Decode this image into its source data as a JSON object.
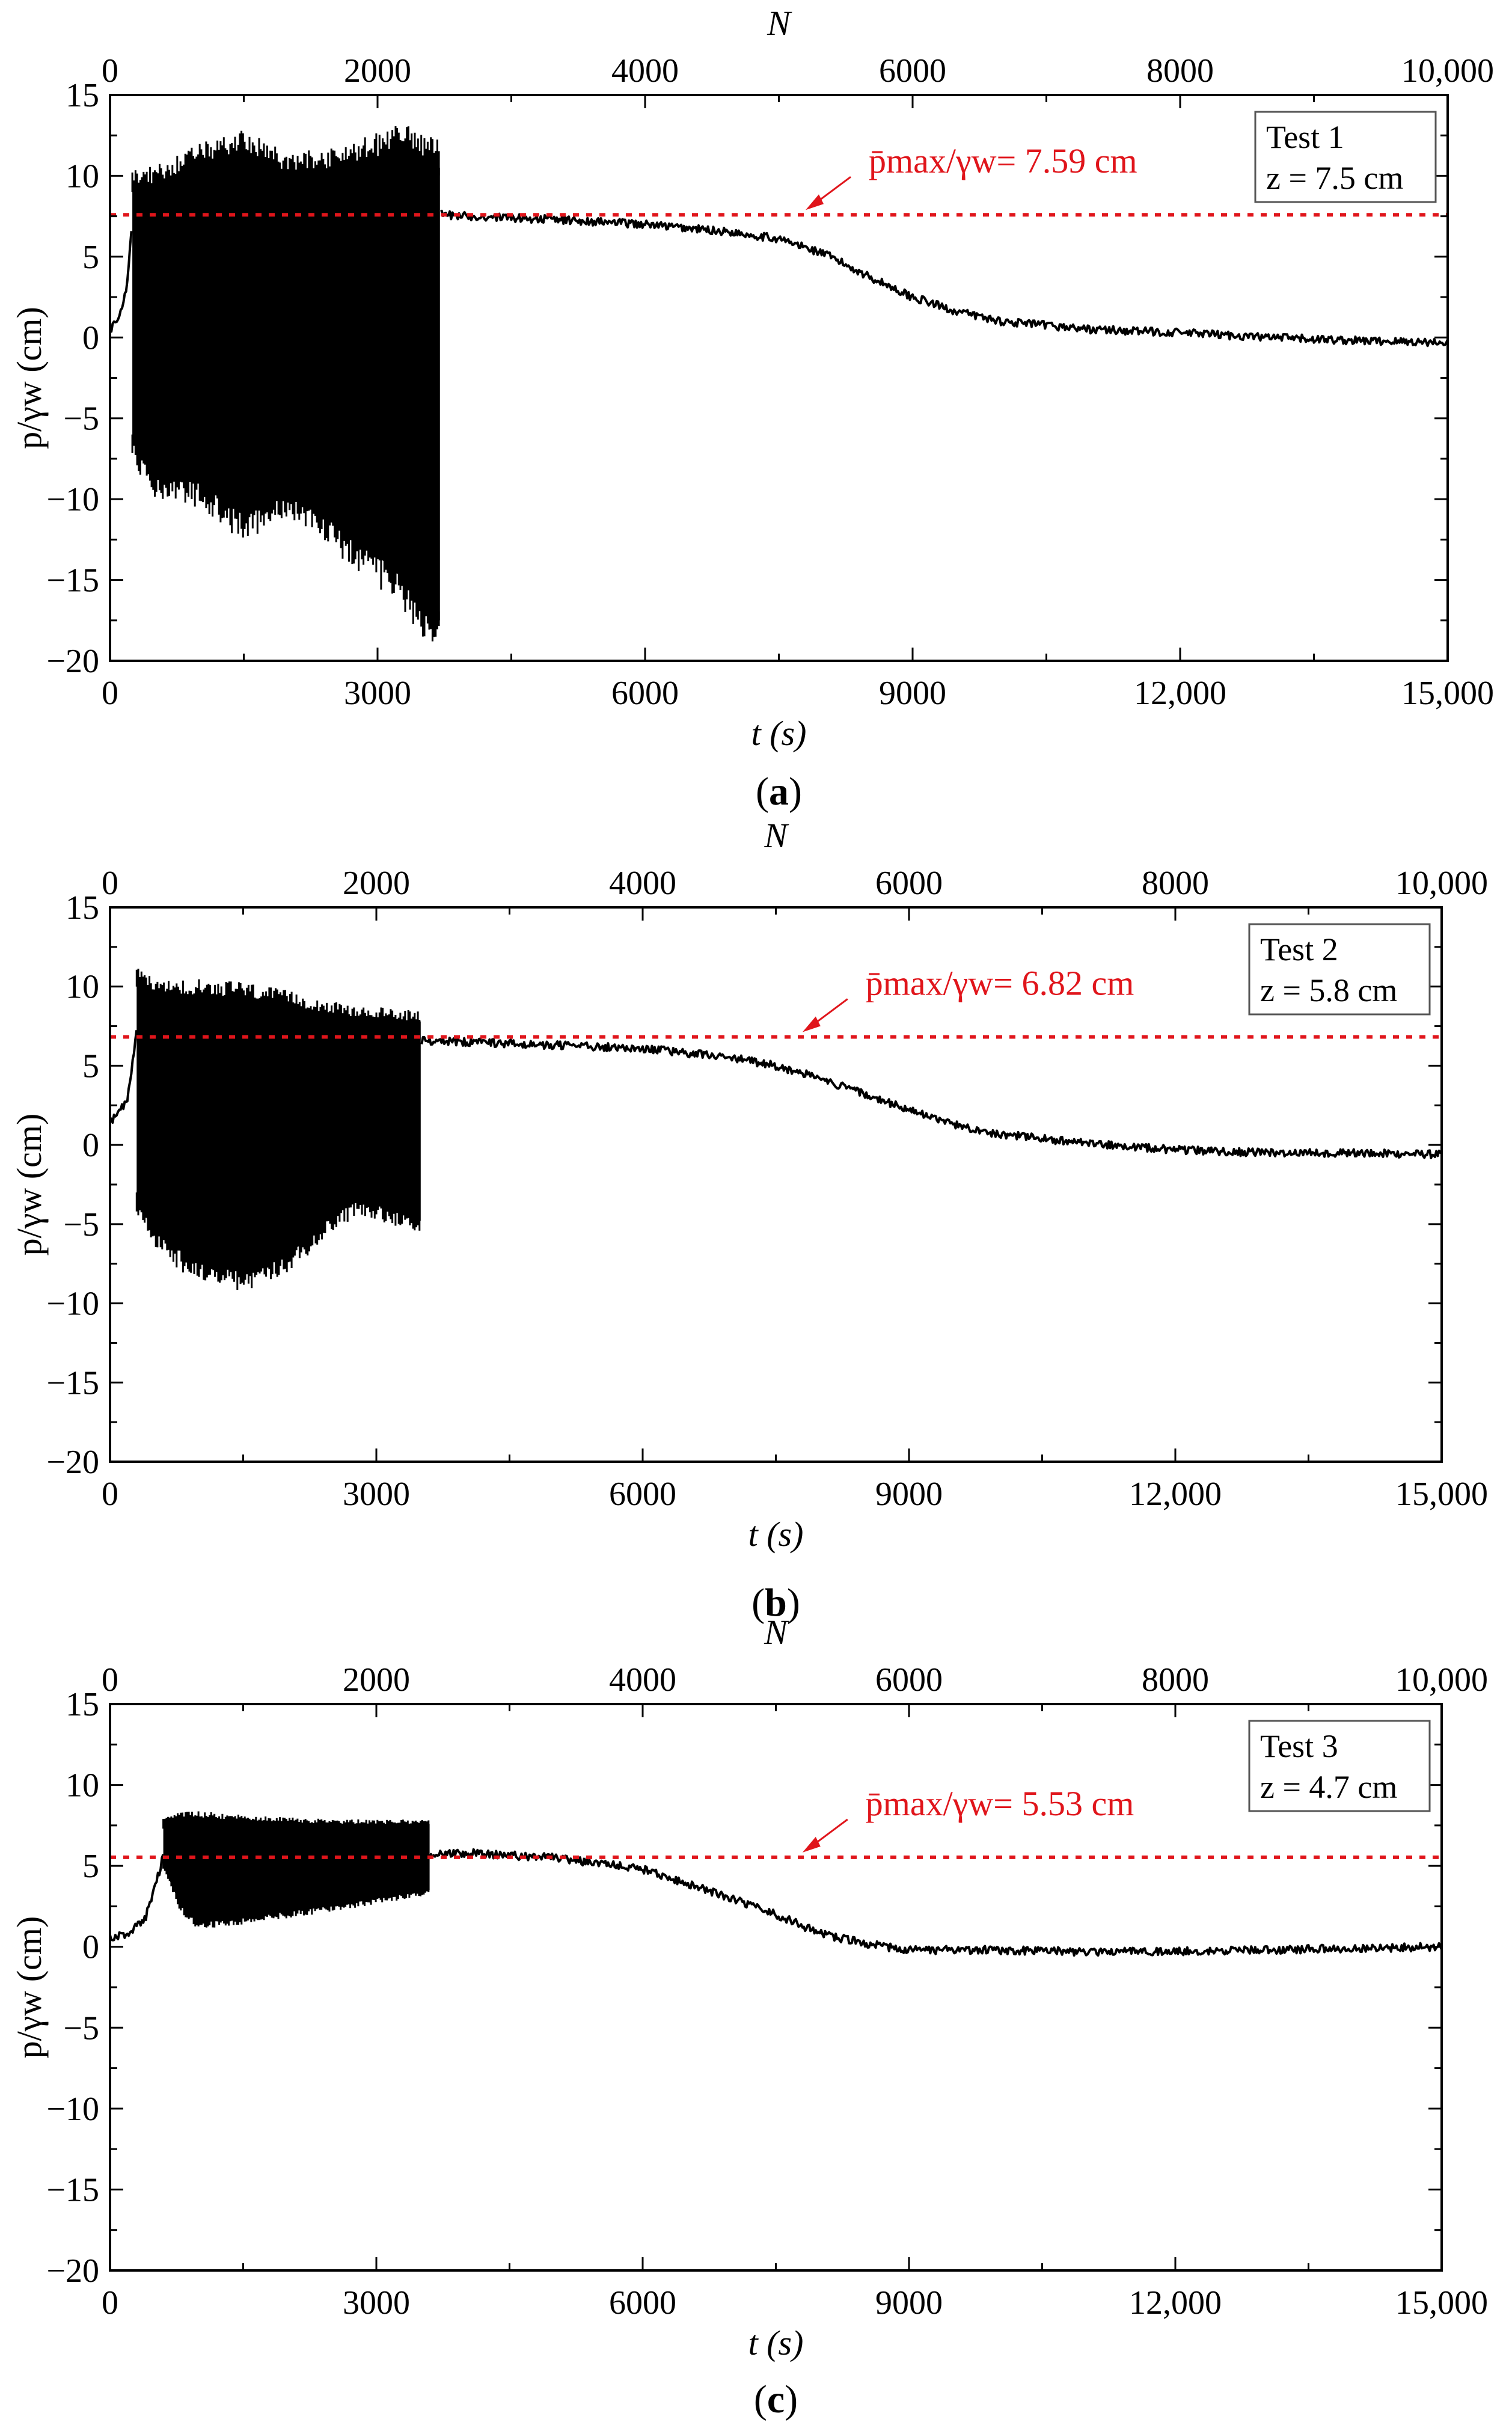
{
  "chart_data": [
    {
      "type": "line",
      "panel_label": "a",
      "test_label": "Test 1",
      "depth_label": "z = 7.5 cm",
      "top_axis_label": "N",
      "top_ticks": [
        "0",
        "2000",
        "4000",
        "6000",
        "8000",
        "10,000"
      ],
      "top_range": [
        0,
        10000
      ],
      "xlabel": "t (s)",
      "x_ticks": [
        "0",
        "3000",
        "6000",
        "9000",
        "12,000",
        "15,000"
      ],
      "xlim": [
        0,
        15000
      ],
      "ylabel": "p/γw (cm)",
      "y_ticks": [
        "15",
        "10",
        "5",
        "0",
        "−5",
        "−10",
        "−15",
        "−20"
      ],
      "ylim": [
        -20,
        15
      ],
      "reference_line": {
        "value": 7.59,
        "text": "p̄max/γw= 7.59 cm",
        "color": "#e0151b"
      },
      "oscillation": {
        "t_start": 250,
        "t_end": 3700,
        "env_t": [
          250,
          500,
          1000,
          1500,
          2000,
          2500,
          3000,
          3300,
          3500,
          3700
        ],
        "upper": [
          9.5,
          9.5,
          10.8,
          11.5,
          10.2,
          10.5,
          11.2,
          11.8,
          11.0,
          10.5
        ],
        "lower": [
          -6.5,
          -8.5,
          -9.0,
          -11.0,
          -9.5,
          -11.5,
          -13.5,
          -15.0,
          -16.5,
          -17.5
        ]
      },
      "series": [
        {
          "name": "pressure",
          "t": [
            0,
            100,
            200,
            250,
            3700,
            4000,
            5000,
            6000,
            7000,
            7500,
            8000,
            8500,
            9000,
            9500,
            10000,
            11000,
            12000,
            13000,
            14000,
            15000
          ],
          "values": [
            0.5,
            1.2,
            3.5,
            7.5,
            7.6,
            7.5,
            7.3,
            7.0,
            6.5,
            6.1,
            5.2,
            3.8,
            2.5,
            1.6,
            1.0,
            0.5,
            0.3,
            0.0,
            -0.2,
            -0.3
          ]
        }
      ]
    },
    {
      "type": "line",
      "panel_label": "b",
      "test_label": "Test 2",
      "depth_label": "z = 5.8 cm",
      "top_axis_label": "N",
      "top_ticks": [
        "0",
        "2000",
        "4000",
        "6000",
        "8000",
        "10,000"
      ],
      "top_range": [
        0,
        10000
      ],
      "xlabel": "t (s)",
      "x_ticks": [
        "0",
        "3000",
        "6000",
        "9000",
        "12,000",
        "15,000"
      ],
      "xlim": [
        0,
        15000
      ],
      "ylabel": "p/γw (cm)",
      "y_ticks": [
        "15",
        "10",
        "5",
        "0",
        "−5",
        "−10",
        "−15",
        "−20"
      ],
      "ylim": [
        -20,
        15
      ],
      "reference_line": {
        "value": 6.82,
        "text": "p̄max/γw= 6.82 cm",
        "color": "#e0151b"
      },
      "oscillation": {
        "t_start": 300,
        "t_end": 3500,
        "env_t": [
          300,
          500,
          1000,
          1500,
          2000,
          2500,
          2800,
          3000,
          3500
        ],
        "upper": [
          10.5,
          9.5,
          9.5,
          9.3,
          8.8,
          8.3,
          8.0,
          8.0,
          7.8
        ],
        "lower": [
          -3.5,
          -5.5,
          -7.5,
          -8.0,
          -7.0,
          -4.5,
          -3.5,
          -3.8,
          -4.8
        ]
      },
      "series": [
        {
          "name": "pressure",
          "t": [
            0,
            100,
            200,
            300,
            3500,
            4000,
            5000,
            6000,
            7000,
            7500,
            8000,
            8500,
            9000,
            9500,
            10000,
            11000,
            12000,
            13000,
            14000,
            15000
          ],
          "values": [
            1.5,
            2.0,
            3.0,
            7.0,
            6.6,
            6.5,
            6.3,
            6.1,
            5.5,
            5.0,
            4.2,
            3.2,
            2.2,
            1.3,
            0.7,
            0.1,
            -0.3,
            -0.5,
            -0.5,
            -0.6
          ]
        }
      ]
    },
    {
      "type": "line",
      "panel_label": "c",
      "test_label": "Test 3",
      "depth_label": "z = 4.7 cm",
      "top_axis_label": "N",
      "top_ticks": [
        "0",
        "2000",
        "4000",
        "6000",
        "8000",
        "10,000"
      ],
      "top_range": [
        0,
        10000
      ],
      "xlabel": "t (s)",
      "x_ticks": [
        "0",
        "3000",
        "6000",
        "9000",
        "12,000",
        "15,000"
      ],
      "xlim": [
        0,
        15000
      ],
      "ylabel": "p/γw (cm)",
      "y_ticks": [
        "15",
        "10",
        "5",
        "0",
        "−5",
        "−10",
        "−15",
        "−20"
      ],
      "ylim": [
        -20,
        15
      ],
      "reference_line": {
        "value": 5.53,
        "text": "p̄max/γw= 5.53 cm",
        "color": "#e0151b"
      },
      "oscillation": {
        "t_start": 600,
        "t_end": 3600,
        "env_t": [
          600,
          800,
          1000,
          1500,
          2000,
          2500,
          3000,
          3600
        ],
        "upper": [
          7.8,
          8.0,
          8.0,
          7.8,
          7.7,
          7.6,
          7.6,
          7.6
        ],
        "lower": [
          5.0,
          2.5,
          1.5,
          1.8,
          2.2,
          2.5,
          3.0,
          3.5
        ]
      },
      "series": [
        {
          "name": "pressure",
          "t": [
            0,
            200,
            400,
            500,
            600,
            3600,
            4000,
            5000,
            6000,
            7000,
            7500,
            8000,
            8500,
            9000,
            10000,
            11000,
            12000,
            13000,
            14000,
            15000
          ],
          "values": [
            0.5,
            0.8,
            1.8,
            3.5,
            5.6,
            5.7,
            5.8,
            5.5,
            4.8,
            3.0,
            2.0,
            0.8,
            0.2,
            -0.2,
            -0.2,
            -0.3,
            -0.3,
            -0.2,
            -0.1,
            0.0
          ]
        }
      ]
    }
  ]
}
